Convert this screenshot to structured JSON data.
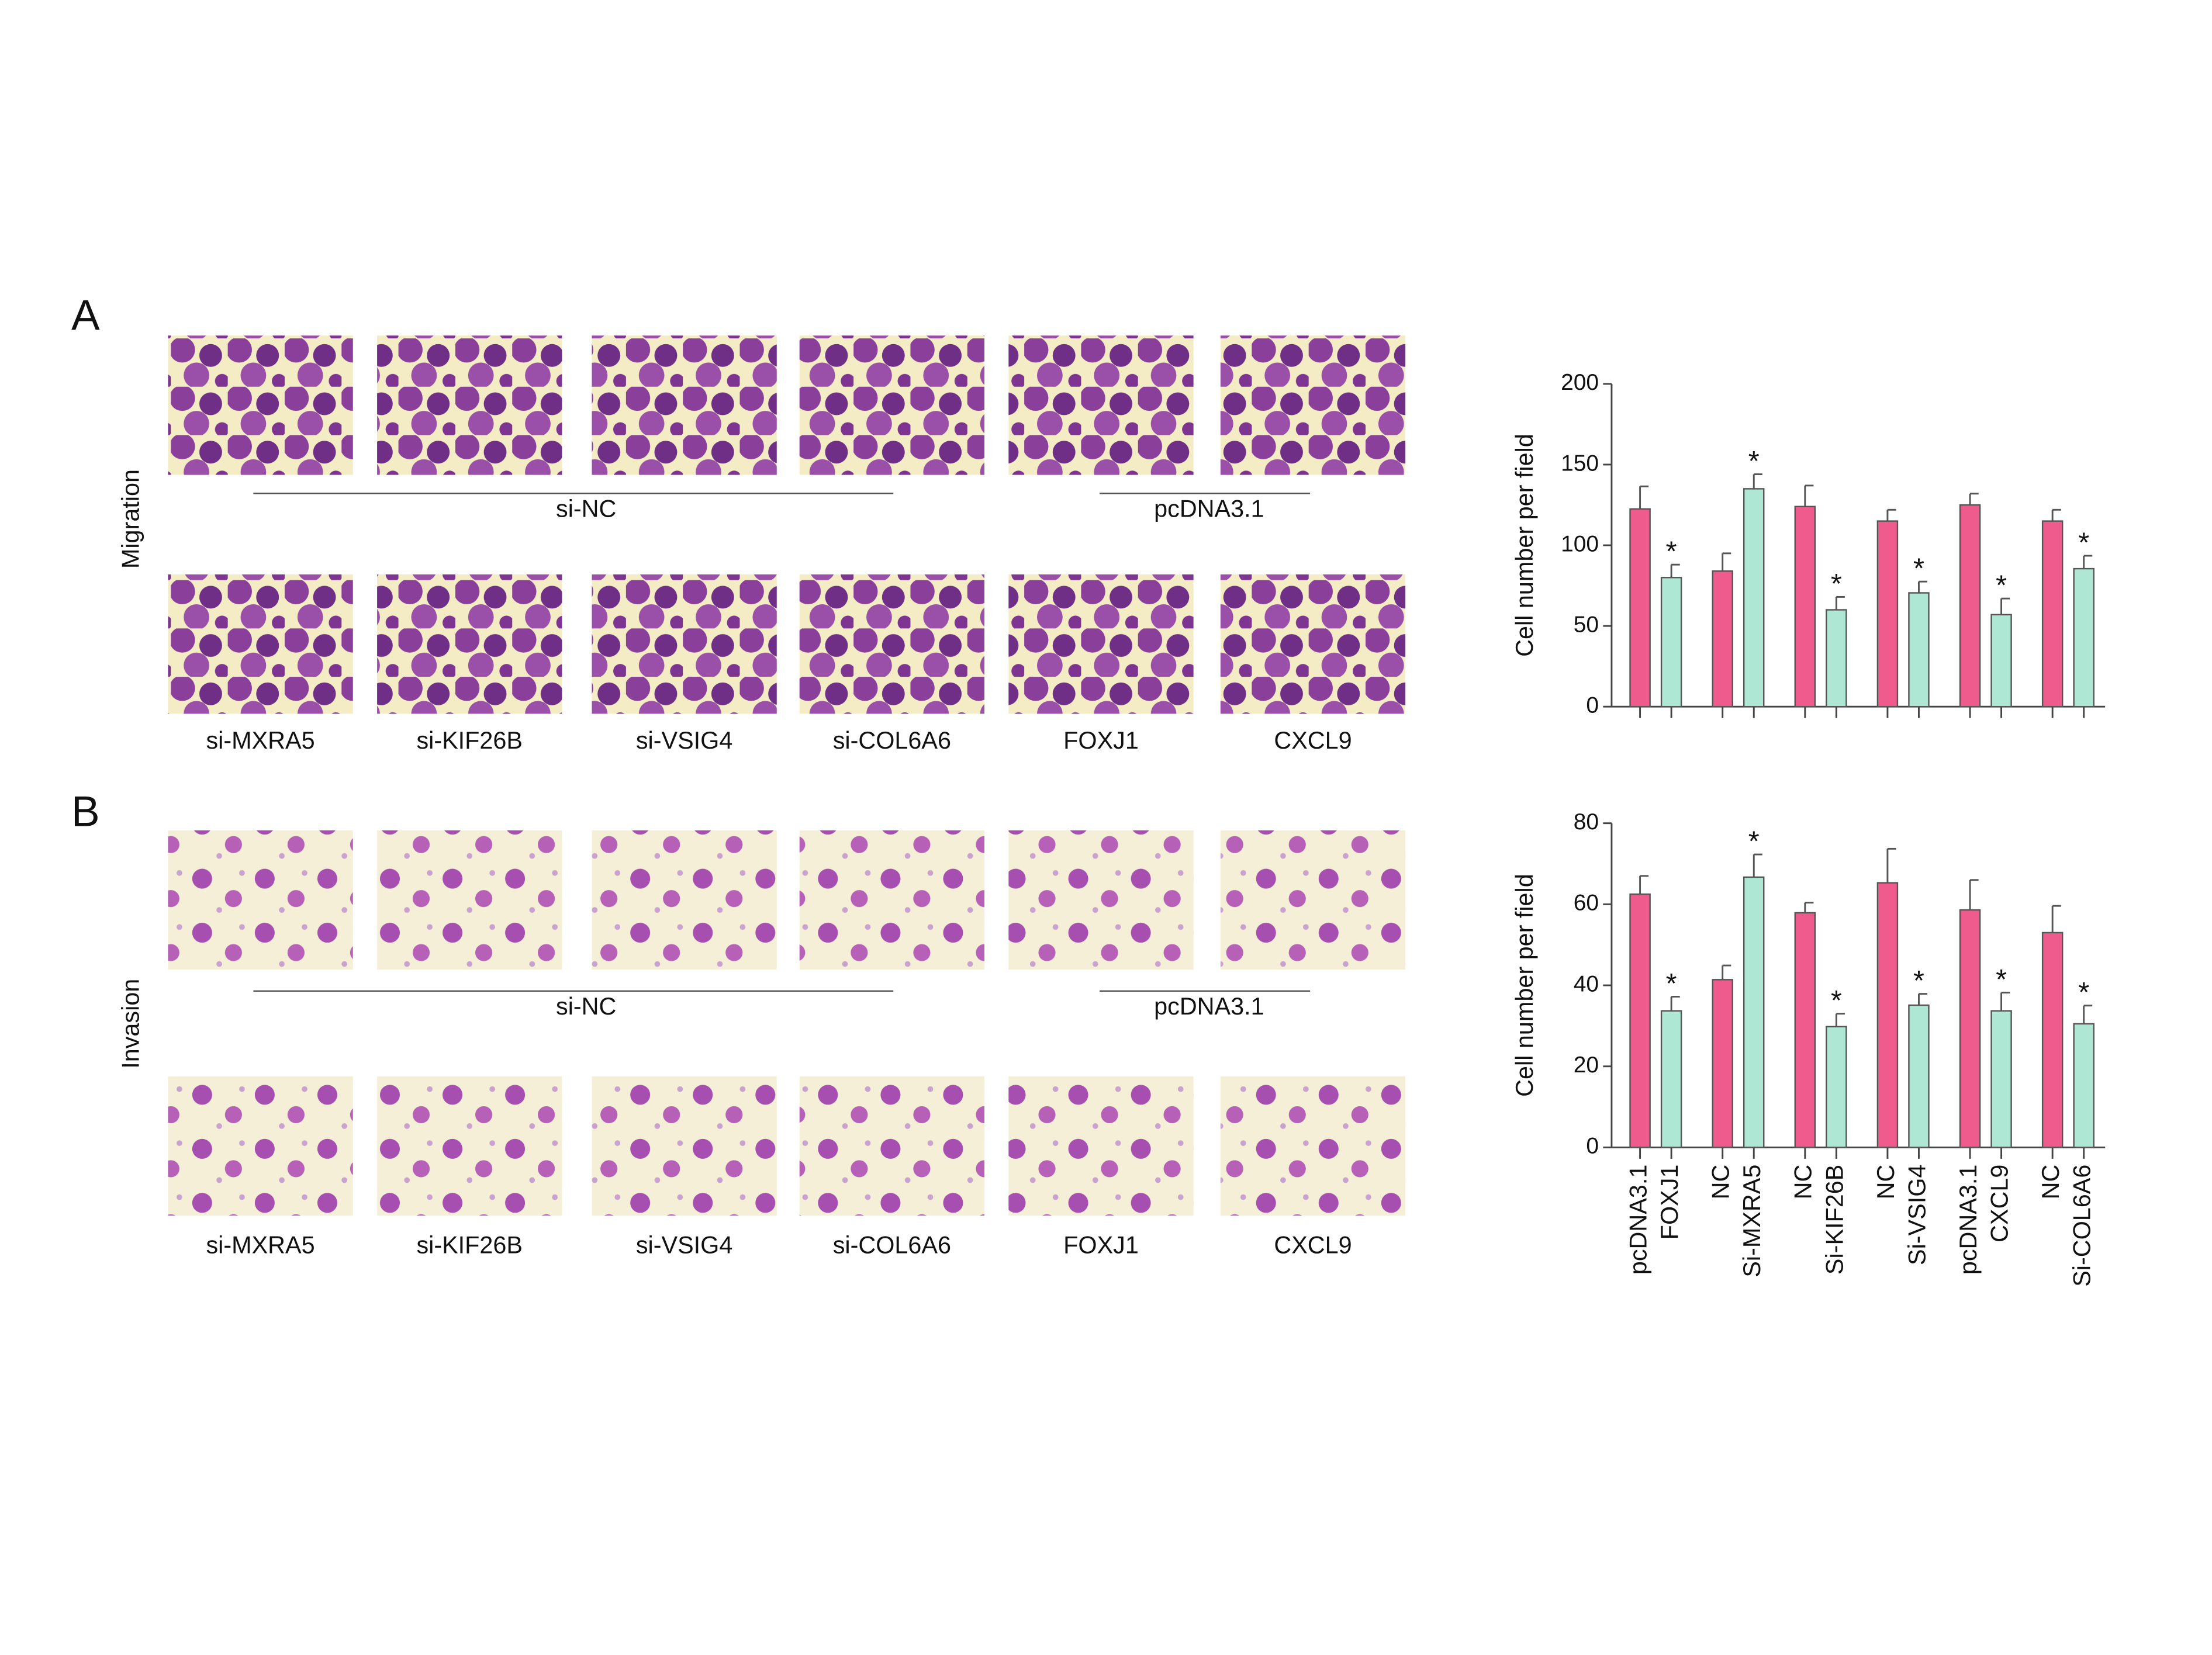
{
  "panels": [
    {
      "label": "A",
      "row_label": "Migration",
      "group_labels": [
        "si-NC",
        "pcDNA3.1"
      ],
      "image_labels": [
        "si-MXRA5",
        "si-KIF26B",
        "si-VSIG4",
        "si-COL6A6",
        "FOXJ1",
        "CXCL9"
      ]
    },
    {
      "label": "B",
      "row_label": "Invasion",
      "group_labels": [
        "si-NC",
        "pcDNA3.1"
      ],
      "image_labels": [
        "si-MXRA5",
        "si-KIF26B",
        "si-VSIG4",
        "si-COL6A6",
        "FOXJ1",
        "CXCL9"
      ]
    }
  ],
  "chart_data": [
    {
      "type": "bar",
      "y_label": "Cell number per field",
      "values": [
        122.5,
        80,
        84,
        135,
        124,
        60,
        115,
        70.5,
        125,
        57,
        115,
        85.5
      ],
      "errors": [
        14,
        8,
        11,
        9,
        13,
        8,
        7,
        7,
        7,
        10,
        7,
        8
      ],
      "significance": [
        null,
        "*",
        null,
        "*",
        null,
        "*",
        null,
        "*",
        null,
        "*",
        null,
        "*"
      ],
      "bar_colors": [
        "#ef5b8c",
        "#aee8d4"
      ],
      "ylim": [
        0,
        200
      ],
      "yticks": [
        0,
        50,
        100,
        150,
        200
      ]
    },
    {
      "type": "bar",
      "y_label": "Cell number per field",
      "categories": [
        "pcDNA3.1",
        "FOXJ1",
        "NC",
        "Si-MXRA5",
        "NC",
        "Si-KIF26B",
        "NC",
        "Si-VSIG4",
        "pcDNA3.1",
        "CXCL9",
        "NC",
        "Si-COL6A6"
      ],
      "values": [
        62.5,
        33.7,
        41.4,
        66.7,
        57.9,
        29.8,
        65.3,
        35.1,
        58.6,
        33.7,
        53,
        30.5
      ],
      "errors": [
        4.5,
        3.5,
        3.5,
        5.6,
        2.5,
        3.2,
        8.4,
        2.8,
        7.4,
        4.5,
        6.6,
        4.5
      ],
      "significance": [
        null,
        "*",
        null,
        "*",
        null,
        "*",
        null,
        "*",
        null,
        "*",
        null,
        "*"
      ],
      "bar_colors": [
        "#ef5b8c",
        "#aee8d4"
      ],
      "ylim": [
        0,
        80
      ],
      "yticks": [
        0,
        20,
        40,
        60,
        80
      ]
    }
  ]
}
